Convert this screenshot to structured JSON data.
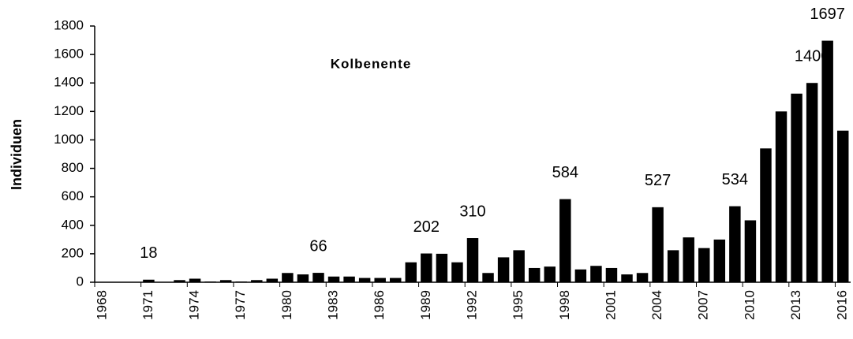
{
  "chart_data": {
    "type": "bar",
    "title": "Kolbenente",
    "y_label": "Individuen",
    "color": "#000000",
    "categories": [
      "1968",
      null,
      null,
      "1971",
      null,
      null,
      "1974",
      null,
      null,
      "1977",
      null,
      null,
      "1980",
      null,
      null,
      "1983",
      null,
      null,
      "1986",
      null,
      null,
      "1989",
      null,
      null,
      "1992",
      null,
      null,
      "1995",
      null,
      null,
      "1998",
      null,
      null,
      "2001",
      null,
      null,
      "2004",
      null,
      null,
      "2007",
      null,
      null,
      "2010",
      null,
      null,
      "2013",
      null,
      null,
      "2016"
    ],
    "values": [
      0,
      0,
      0,
      18,
      0,
      15,
      25,
      5,
      15,
      5,
      15,
      25,
      65,
      55,
      66,
      40,
      40,
      30,
      30,
      30,
      140,
      202,
      200,
      140,
      310,
      65,
      175,
      225,
      100,
      110,
      584,
      90,
      115,
      100,
      55,
      65,
      527,
      225,
      315,
      240,
      300,
      534,
      435,
      940,
      1200,
      1325,
      1400,
      1697,
      1065
    ],
    "value_labels": [
      null,
      null,
      null,
      "18",
      null,
      null,
      null,
      null,
      null,
      null,
      null,
      null,
      null,
      null,
      "66",
      null,
      null,
      null,
      null,
      null,
      null,
      "202",
      null,
      null,
      "310",
      null,
      null,
      null,
      null,
      null,
      "584",
      null,
      null,
      null,
      null,
      null,
      "527",
      null,
      null,
      null,
      null,
      "534",
      null,
      null,
      null,
      null,
      "1400",
      "1697",
      null
    ],
    "ylim": [
      0,
      1800
    ],
    "yticks": [
      0,
      200,
      400,
      600,
      800,
      1000,
      1200,
      1400,
      1600,
      1800
    ],
    "grid": false
  }
}
